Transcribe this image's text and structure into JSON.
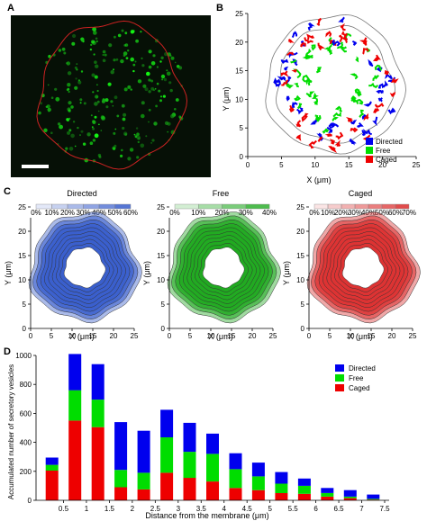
{
  "panels": {
    "a": {
      "letter": "A"
    },
    "b": {
      "letter": "B"
    },
    "c": {
      "letter": "C"
    },
    "d": {
      "letter": "D"
    }
  },
  "colors": {
    "directed": "#0000ee",
    "free": "#00dd00",
    "caged": "#ee0000",
    "cell_outline": "#cc2222"
  },
  "chart_data": [
    {
      "id": "B",
      "type": "scatter",
      "xlabel": "X (μm)",
      "ylabel": "Y (μm)",
      "xlim": [
        0,
        25
      ],
      "ylim": [
        0,
        25
      ],
      "x_ticks": [
        "0",
        "5",
        "10",
        "15",
        "20",
        "25"
      ],
      "y_ticks": [
        "0",
        "5",
        "10",
        "15",
        "20",
        "25"
      ],
      "legend": [
        "Directed",
        "Free",
        "Caged"
      ],
      "legend_position": "bottom-right"
    },
    {
      "id": "C",
      "type": "heatmap",
      "xlabel": "X (μm)",
      "ylabel": "Y (μm)",
      "xlim": [
        0,
        25
      ],
      "ylim": [
        0,
        25
      ],
      "x_ticks": [
        "0",
        "5",
        "10",
        "15",
        "20",
        "25"
      ],
      "y_ticks": [
        "0",
        "5",
        "10",
        "15",
        "20",
        "25"
      ],
      "subplots": [
        {
          "title": "Directed",
          "color": "#3a5fcd",
          "scale": [
            "0%",
            "10%",
            "20%",
            "30%",
            "40%",
            "50%",
            "60%"
          ]
        },
        {
          "title": "Free",
          "color": "#22aa22",
          "scale": [
            "0%",
            "10%",
            "20%",
            "30%",
            "40%"
          ]
        },
        {
          "title": "Caged",
          "color": "#dd3333",
          "scale": [
            "0%",
            "10%",
            "20%",
            "30%",
            "40%",
            "50%",
            "60%",
            "70%"
          ]
        }
      ]
    },
    {
      "id": "D",
      "type": "bar",
      "stacked": true,
      "xlabel": "Distance from the membrane (μm)",
      "ylabel": "Accumulated number of secretory vesicles",
      "ylim": [
        0,
        1000
      ],
      "x_ticks": [
        "0.5",
        "1",
        "1.5",
        "2",
        "2.5",
        "3",
        "3.5",
        "4",
        "4.5",
        "5",
        "5.5",
        "6",
        "6.5",
        "7",
        "7.5"
      ],
      "y_ticks": [
        "0",
        "200",
        "400",
        "600",
        "800",
        "1000"
      ],
      "categories": [
        "0.25",
        "0.75",
        "1.25",
        "1.75",
        "2.25",
        "2.75",
        "3.25",
        "3.75",
        "4.25",
        "4.75",
        "5.25",
        "5.75",
        "6.25",
        "6.75",
        "7.25"
      ],
      "series": [
        {
          "name": "Caged",
          "values": [
            205,
            550,
            505,
            90,
            75,
            190,
            155,
            130,
            85,
            70,
            50,
            45,
            25,
            15,
            5
          ]
        },
        {
          "name": "Free",
          "values": [
            40,
            210,
            190,
            120,
            115,
            245,
            180,
            190,
            130,
            95,
            65,
            55,
            25,
            10,
            5
          ]
        },
        {
          "name": "Directed",
          "values": [
            50,
            250,
            245,
            330,
            290,
            190,
            200,
            140,
            110,
            95,
            80,
            50,
            35,
            45,
            30
          ]
        }
      ],
      "legend_position": "top-right"
    }
  ]
}
